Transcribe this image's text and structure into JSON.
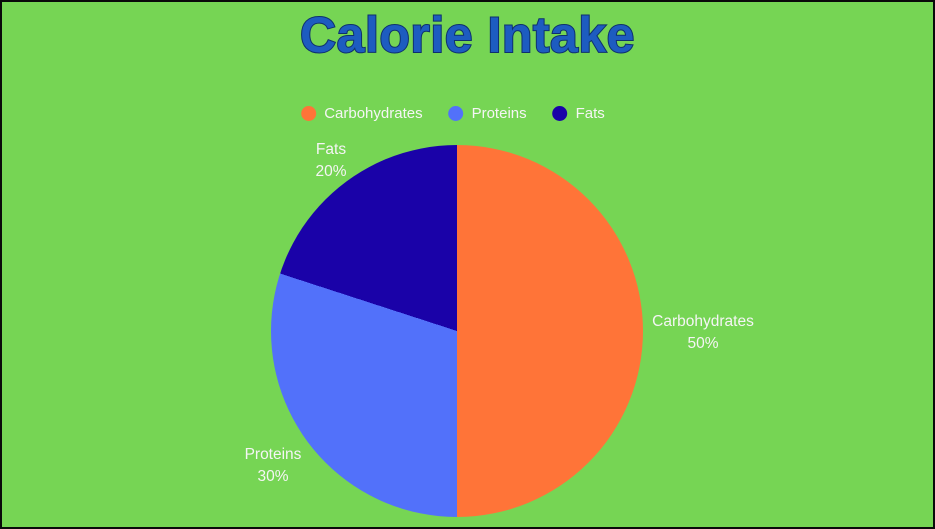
{
  "page": {
    "background_color": "#76D554",
    "frame_color": "#0a0a0a"
  },
  "title": {
    "text": "Calorie Intake",
    "color": "#1D5CC0",
    "outline_color": "#0E306E"
  },
  "legend": {
    "position": "top",
    "items": [
      {
        "label": "Carbohydrates",
        "color": "#FF7438"
      },
      {
        "label": "Proteins",
        "color": "#5271FA"
      },
      {
        "label": "Fats",
        "color": "#1A02A8"
      }
    ]
  },
  "chart_data": {
    "type": "pie",
    "title": "Calorie Intake",
    "categories": [
      "Carbohydrates",
      "Proteins",
      "Fats"
    ],
    "values": [
      50,
      30,
      20
    ],
    "unit": "percent",
    "colors": [
      "#FF7438",
      "#5271FA",
      "#1A02A8"
    ],
    "start_angle_deg": 0,
    "direction": "clockwise",
    "legend_position": "top",
    "slice_labels": [
      {
        "name": "Carbohydrates",
        "value_text": "50%"
      },
      {
        "name": "Proteins",
        "value_text": "30%"
      },
      {
        "name": "Fats",
        "value_text": "20%"
      }
    ]
  }
}
